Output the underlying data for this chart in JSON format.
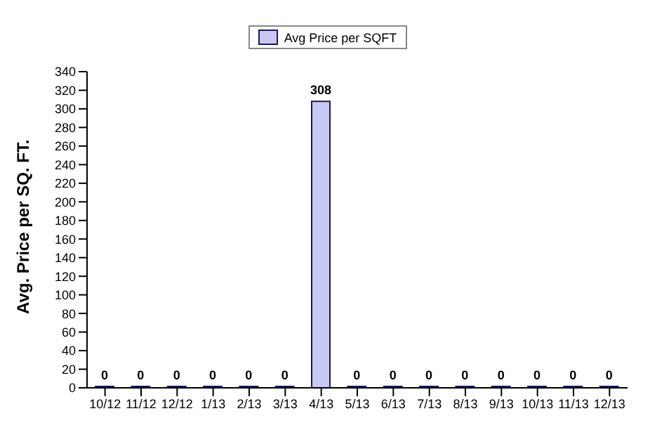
{
  "chart_data": {
    "type": "bar",
    "ylabel": "Avg. Price per SQ. FT.",
    "categories": [
      "10/12",
      "11/12",
      "12/12",
      "1/13",
      "2/13",
      "3/13",
      "4/13",
      "5/13",
      "6/13",
      "7/13",
      "8/13",
      "9/13",
      "10/13",
      "11/13",
      "12/13"
    ],
    "series": [
      {
        "name": "Avg Price per SQFT",
        "color": "#c8c8f0",
        "values": [
          0,
          0,
          0,
          0,
          0,
          0,
          308,
          0,
          0,
          0,
          0,
          0,
          0,
          0,
          0
        ]
      }
    ],
    "ylim": [
      0,
      340
    ],
    "yticks": [
      0,
      20,
      40,
      60,
      80,
      100,
      120,
      140,
      160,
      180,
      200,
      220,
      240,
      260,
      280,
      300,
      320,
      340
    ],
    "grid": false,
    "legend": "top",
    "data_labels": true
  }
}
